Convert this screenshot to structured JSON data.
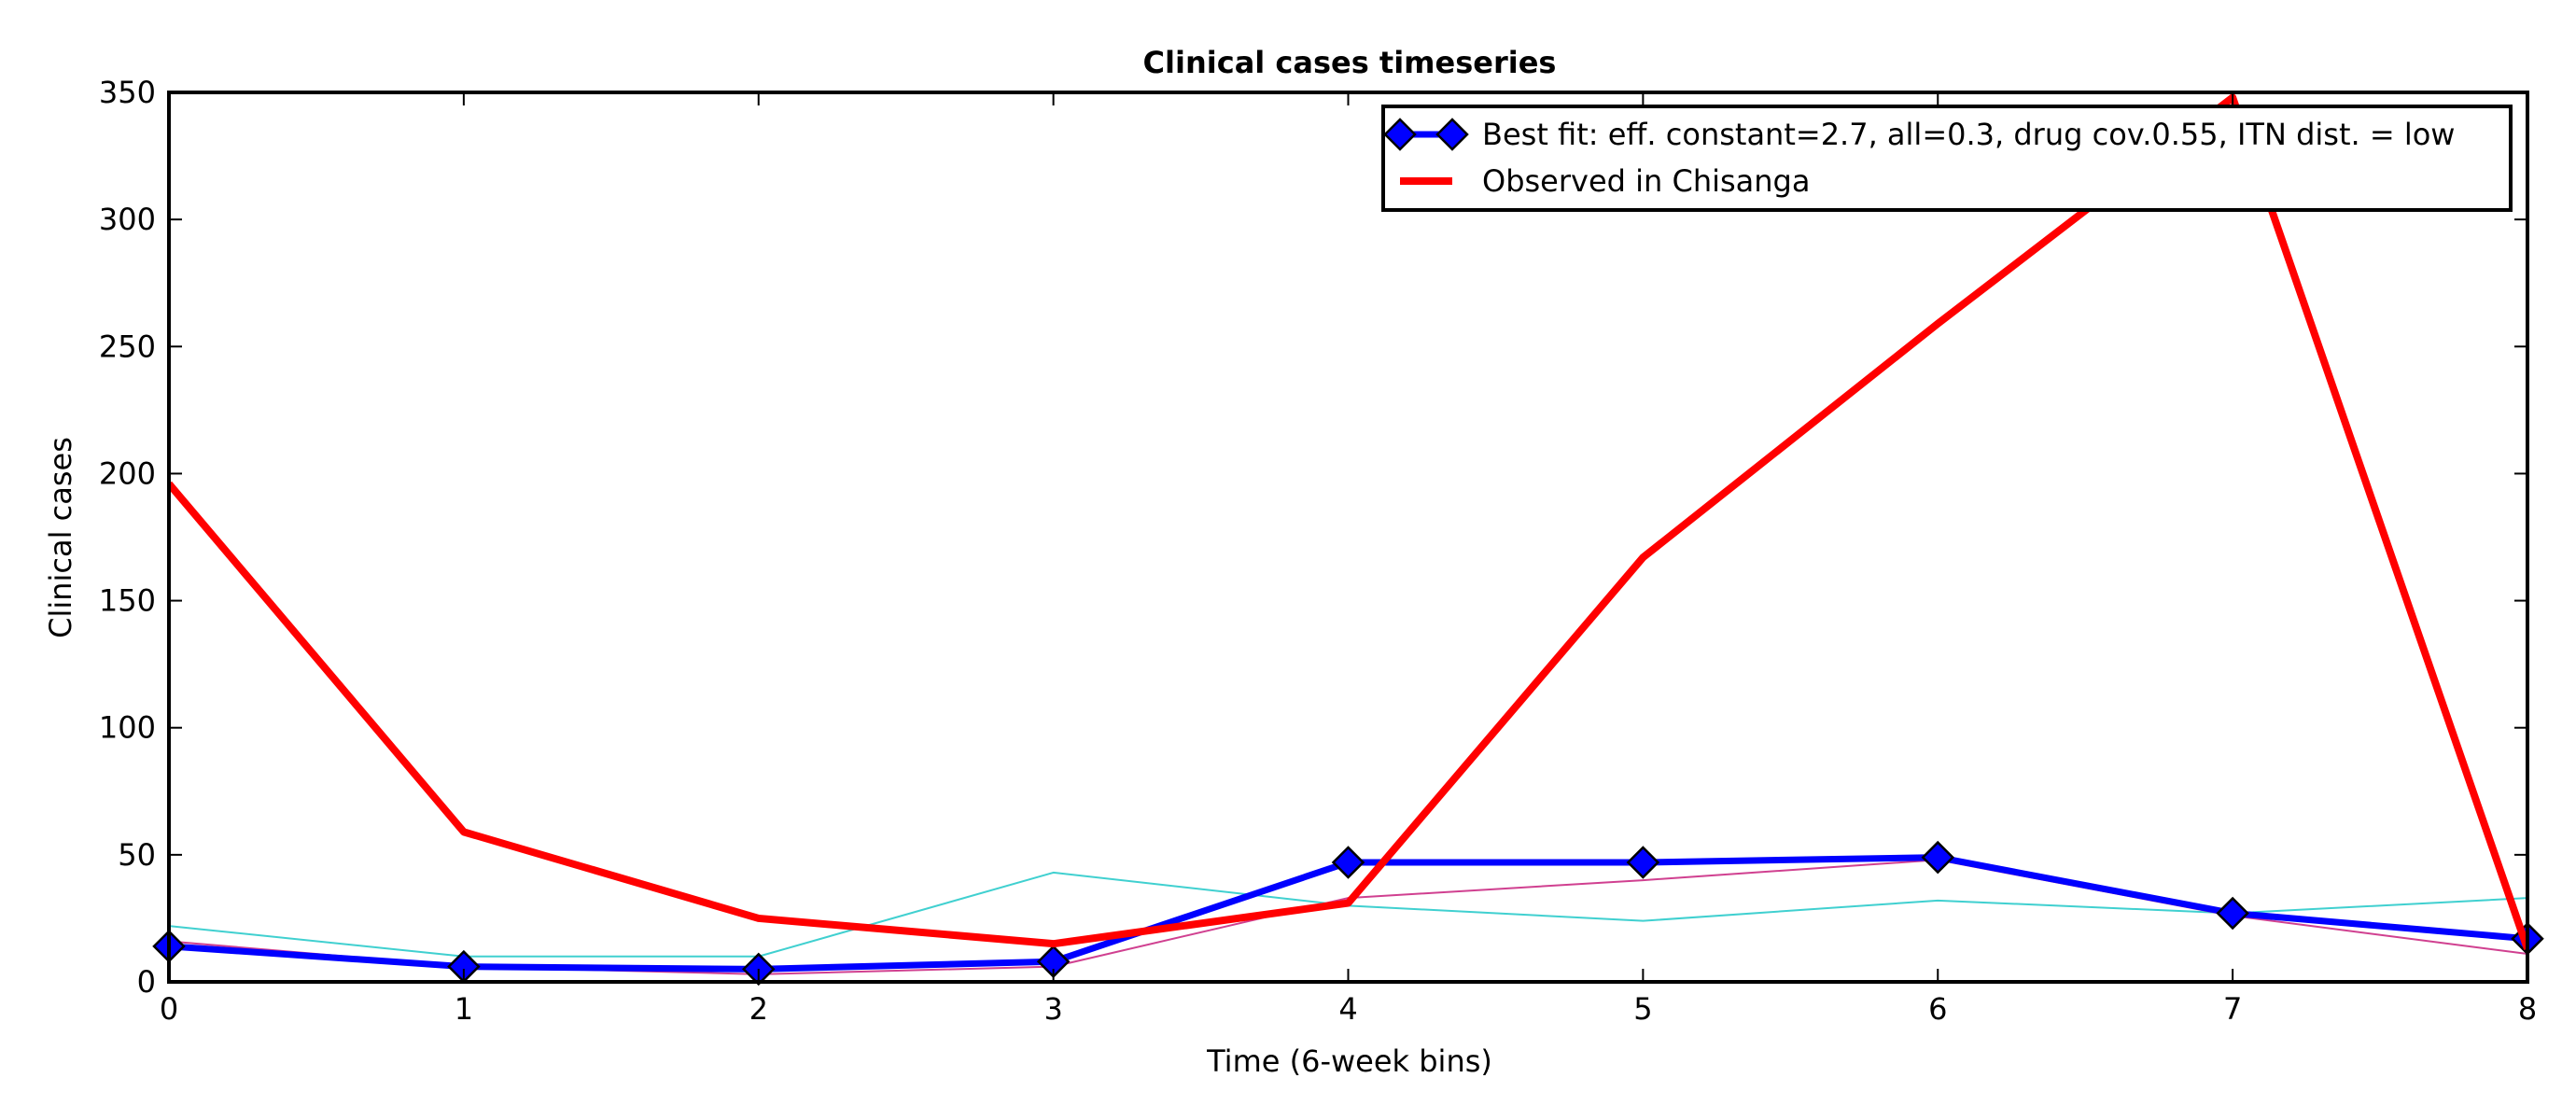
{
  "chart_data": {
    "type": "line",
    "title": "Clinical cases timeseries",
    "xlabel": "Time (6-week bins)",
    "ylabel": "Clinical cases",
    "xlim": [
      0,
      8
    ],
    "ylim": [
      0,
      350
    ],
    "xticks": [
      0,
      1,
      2,
      3,
      4,
      5,
      6,
      7,
      8
    ],
    "yticks": [
      0,
      50,
      100,
      150,
      200,
      250,
      300,
      350
    ],
    "grid": false,
    "legend_position": "top-right",
    "x": [
      0,
      1,
      2,
      3,
      4,
      5,
      6,
      7,
      8
    ],
    "series": [
      {
        "name": "Best fit: eff. constant=2.7, all=0.3, drug cov.0.55, ITN dist. = low",
        "values": [
          14,
          6,
          5,
          8,
          47,
          47,
          49,
          27,
          17
        ],
        "color": "#0000ff",
        "marker_color": "#0000ff",
        "marker": "diamond",
        "in_legend": true
      },
      {
        "name": "Observed in Chisanga",
        "values": [
          196,
          59,
          25,
          15,
          31,
          167,
          259,
          348,
          13
        ],
        "color": "#ff0000",
        "marker": "none",
        "in_legend": true
      },
      {
        "values": [
          22,
          10,
          10,
          43,
          30,
          24,
          32,
          27,
          33
        ],
        "color": "#40d0d0",
        "marker": "none",
        "in_legend": false
      },
      {
        "values": [
          16,
          6,
          3,
          6,
          33,
          40,
          48,
          26,
          11
        ],
        "color": "#d04090",
        "marker": "none",
        "in_legend": false
      }
    ]
  }
}
